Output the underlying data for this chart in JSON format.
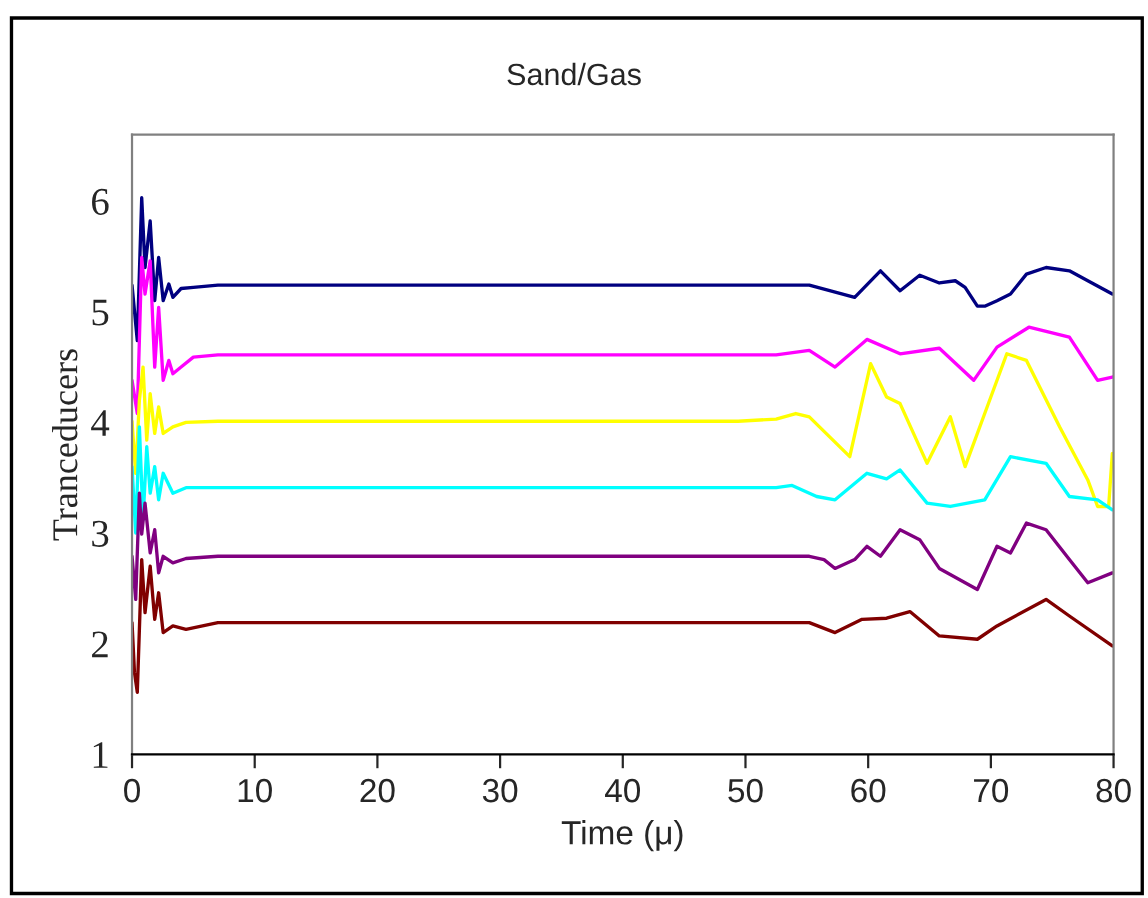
{
  "chart_data": {
    "type": "line",
    "title": "Sand/Gas",
    "xlabel": "Time (μ)",
    "ylabel": "Tranceducers",
    "xlim": [
      0,
      80
    ],
    "xticks": [
      0,
      10,
      20,
      30,
      40,
      50,
      60,
      70,
      80
    ],
    "ylim": [
      1,
      6.6
    ],
    "yticks": [
      1,
      2,
      3,
      4,
      5,
      6
    ],
    "grid": false,
    "legend": false,
    "marker": "none",
    "line_style": "solid",
    "series": [
      {
        "color": "#000080",
        "x": [
          0,
          0.43,
          0.79,
          1.06,
          1.48,
          1.85,
          2.17,
          2.54,
          3.0,
          3.33,
          4.0,
          5.0,
          7.0,
          38.3,
          52.5,
          55.2,
          58.9,
          61.0,
          62.6,
          64.2,
          65.8,
          67.1,
          67.9,
          68.9,
          69.5,
          70.5,
          71.6,
          72.9,
          74.5,
          76.4,
          77.9,
          79.9
        ],
        "values": [
          5.24,
          4.74,
          6.03,
          5.4,
          5.82,
          5.1,
          5.49,
          5.1,
          5.25,
          5.13,
          5.21,
          5.22,
          5.24,
          5.24,
          5.24,
          5.24,
          5.13,
          5.37,
          5.19,
          5.33,
          5.26,
          5.28,
          5.22,
          5.05,
          5.05,
          5.1,
          5.16,
          5.34,
          5.4,
          5.37,
          5.28,
          5.16
        ]
      },
      {
        "color": "#ff00ff",
        "x": [
          0,
          0.43,
          0.79,
          1.06,
          1.48,
          1.85,
          2.17,
          2.54,
          3.0,
          3.33,
          4.0,
          5.0,
          7.0,
          52.5,
          55.2,
          57.3,
          59.9,
          62.6,
          65.8,
          68.6,
          70.5,
          73.1,
          76.4,
          78.7,
          79.9
        ],
        "values": [
          4.38,
          4.08,
          5.49,
          5.16,
          5.46,
          4.5,
          5.04,
          4.38,
          4.56,
          4.44,
          4.5,
          4.59,
          4.61,
          4.61,
          4.65,
          4.5,
          4.75,
          4.62,
          4.67,
          4.38,
          4.68,
          4.86,
          4.77,
          4.38,
          4.41
        ]
      },
      {
        "color": "#ffff00",
        "x": [
          0,
          0.3,
          0.6,
          0.9,
          1.2,
          1.48,
          1.85,
          2.17,
          2.54,
          3.33,
          4.4,
          7.0,
          49.4,
          52.5,
          54.1,
          55.2,
          58.5,
          60.2,
          61.5,
          62.6,
          64.8,
          66.7,
          67.9,
          69.5,
          71.3,
          72.9,
          75.6,
          77.9,
          78.7,
          79.6,
          79.9
        ],
        "values": [
          4.01,
          3.54,
          4.2,
          4.5,
          3.84,
          4.26,
          3.9,
          4.14,
          3.9,
          3.96,
          4.0,
          4.01,
          4.01,
          4.03,
          4.08,
          4.05,
          3.69,
          4.53,
          4.23,
          4.17,
          3.63,
          4.05,
          3.6,
          4.08,
          4.62,
          4.56,
          3.96,
          3.48,
          3.24,
          3.24,
          3.72
        ]
      },
      {
        "color": "#00ffff",
        "x": [
          0,
          0.3,
          0.6,
          0.9,
          1.2,
          1.48,
          1.85,
          2.17,
          2.54,
          3.33,
          4.4,
          52.5,
          53.8,
          55.8,
          57.3,
          59.9,
          61.5,
          62.6,
          64.8,
          66.7,
          69.5,
          71.6,
          74.5,
          76.4,
          78.7,
          79.9
        ],
        "values": [
          3.6,
          3.0,
          3.96,
          3.12,
          3.78,
          3.36,
          3.6,
          3.3,
          3.54,
          3.36,
          3.41,
          3.41,
          3.43,
          3.33,
          3.3,
          3.54,
          3.49,
          3.57,
          3.27,
          3.24,
          3.3,
          3.69,
          3.63,
          3.33,
          3.3,
          3.21
        ]
      },
      {
        "color": "#800080",
        "x": [
          0,
          0.3,
          0.6,
          0.79,
          1.06,
          1.48,
          1.85,
          2.17,
          2.54,
          3.33,
          4.4,
          7.0,
          55.2,
          56.4,
          57.3,
          58.9,
          59.9,
          61.0,
          62.6,
          64.2,
          65.8,
          68.9,
          70.5,
          71.6,
          72.9,
          74.5,
          76.4,
          77.9,
          79.9
        ],
        "values": [
          2.79,
          2.4,
          3.36,
          2.99,
          3.27,
          2.82,
          3.03,
          2.64,
          2.79,
          2.73,
          2.77,
          2.79,
          2.79,
          2.76,
          2.68,
          2.76,
          2.88,
          2.79,
          3.03,
          2.94,
          2.68,
          2.49,
          2.88,
          2.82,
          3.09,
          3.03,
          2.76,
          2.55,
          2.64
        ]
      },
      {
        "color": "#800000",
        "x": [
          0,
          0.2,
          0.43,
          0.79,
          1.06,
          1.48,
          1.85,
          2.17,
          2.54,
          3.33,
          4.4,
          7.0,
          55.2,
          57.3,
          59.5,
          61.5,
          63.4,
          65.8,
          68.9,
          70.5,
          74.5,
          76.4,
          79.9
        ],
        "values": [
          2.19,
          1.74,
          1.56,
          2.76,
          2.28,
          2.7,
          2.22,
          2.46,
          2.1,
          2.16,
          2.13,
          2.19,
          2.19,
          2.1,
          2.22,
          2.23,
          2.29,
          2.07,
          2.04,
          2.16,
          2.4,
          2.25,
          1.98
        ]
      }
    ]
  }
}
